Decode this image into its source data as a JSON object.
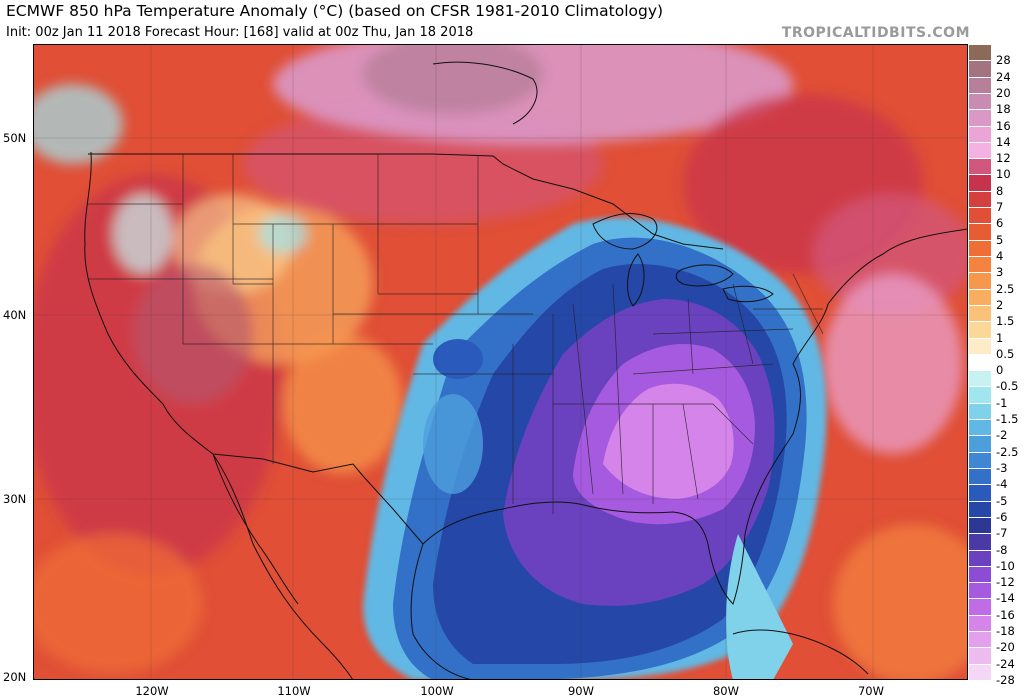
{
  "header": {
    "title": "ECMWF 850 hPa Temperature Anomaly (°C) (based on CFSR 1981-2010 Climatology)",
    "subtitle": "Init: 00z Jan 11 2018   Forecast Hour: [168]   valid at 00z Thu, Jan 18 2018",
    "site": "TROPICALTIDBITS.COM"
  },
  "map": {
    "lat_labels": [
      "50N",
      "40N",
      "30N",
      "20N"
    ],
    "lon_labels": [
      "120W",
      "110W",
      "100W",
      "90W",
      "80W",
      "70W"
    ]
  },
  "colorbar": {
    "levels": [
      {
        "label": "28",
        "color": "#8c6a57"
      },
      {
        "label": "24",
        "color": "#a3737f"
      },
      {
        "label": "20",
        "color": "#b67f9a"
      },
      {
        "label": "18",
        "color": "#c88cb3"
      },
      {
        "label": "16",
        "color": "#da98c6"
      },
      {
        "label": "14",
        "color": "#eaa5d6"
      },
      {
        "label": "12",
        "color": "#f4b2e2"
      },
      {
        "label": "10",
        "color": "#d2577f"
      },
      {
        "label": "8",
        "color": "#c7324c"
      },
      {
        "label": "7",
        "color": "#d4403e"
      },
      {
        "label": "6",
        "color": "#e04f36"
      },
      {
        "label": "5",
        "color": "#e85c33"
      },
      {
        "label": "4",
        "color": "#ef6e36"
      },
      {
        "label": "3",
        "color": "#f4833f"
      },
      {
        "label": "2.5",
        "color": "#f6984c"
      },
      {
        "label": "2",
        "color": "#f8ad5f"
      },
      {
        "label": "1.5",
        "color": "#fac278"
      },
      {
        "label": "1",
        "color": "#fcd898"
      },
      {
        "label": "0.5",
        "color": "#feecc6"
      },
      {
        "label": "0",
        "color": "#ffffff"
      },
      {
        "label": "-0.5",
        "color": "#c6f2f4"
      },
      {
        "label": "-1",
        "color": "#9fe6ee"
      },
      {
        "label": "-1.5",
        "color": "#7fd2ea"
      },
      {
        "label": "-2",
        "color": "#62b8e4"
      },
      {
        "label": "-2.5",
        "color": "#4d9fdc"
      },
      {
        "label": "-3",
        "color": "#3f87d3"
      },
      {
        "label": "-4",
        "color": "#3370c8"
      },
      {
        "label": "-5",
        "color": "#2a5bbc"
      },
      {
        "label": "-6",
        "color": "#2547a8"
      },
      {
        "label": "-7",
        "color": "#2c3894"
      },
      {
        "label": "-8",
        "color": "#4a3aa6"
      },
      {
        "label": "-10",
        "color": "#6a42c0"
      },
      {
        "label": "-12",
        "color": "#8a4dd3"
      },
      {
        "label": "-14",
        "color": "#a65adf"
      },
      {
        "label": "-16",
        "color": "#c06ce6"
      },
      {
        "label": "-18",
        "color": "#d585ea"
      },
      {
        "label": "-20",
        "color": "#e3a0ec"
      },
      {
        "label": "-24",
        "color": "#eebbf0"
      },
      {
        "label": "-28",
        "color": "#f6d6f6"
      }
    ]
  }
}
